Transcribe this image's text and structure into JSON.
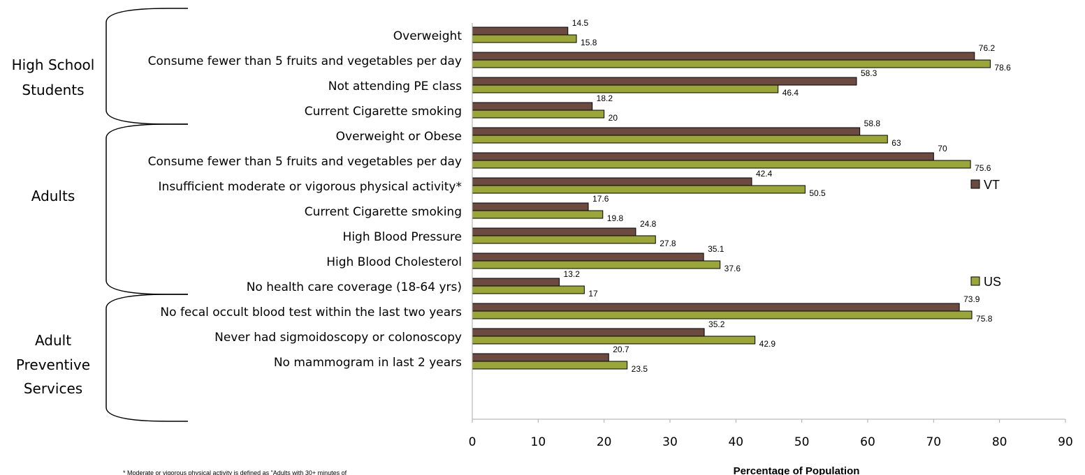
{
  "chart_data": {
    "type": "bar",
    "orientation": "horizontal",
    "xlabel": "Percentage of Population",
    "xlim": [
      0,
      90
    ],
    "xticks": [
      0,
      10,
      20,
      30,
      40,
      50,
      60,
      70,
      80,
      90
    ],
    "grid": false,
    "legend_position": "right",
    "series": [
      {
        "name": "VT",
        "color": "#6b4a42"
      },
      {
        "name": "US",
        "color": "#9aa63a"
      }
    ],
    "groups": [
      {
        "name": "High School Students",
        "lines": [
          "High School",
          "Students"
        ],
        "items": [
          {
            "label": "Overweight",
            "VT": 14.5,
            "US": 15.8
          },
          {
            "label": "Consume fewer than 5 fruits and vegetables per day",
            "VT": 76.2,
            "US": 78.6
          },
          {
            "label": "Not attending PE class",
            "VT": 58.3,
            "US": 46.4
          },
          {
            "label": "Current Cigarette smoking",
            "VT": 18.2,
            "US": 20
          }
        ]
      },
      {
        "name": "Adults",
        "lines": [
          "Adults"
        ],
        "items": [
          {
            "label": "Overweight or Obese",
            "VT": 58.8,
            "US": 63
          },
          {
            "label": "Consume fewer than 5 fruits and vegetables per day",
            "VT": 70,
            "US": 75.6
          },
          {
            "label": "Insufficient moderate or vigorous physical activity*",
            "VT": 42.4,
            "US": 50.5
          },
          {
            "label": "Current Cigarette smoking",
            "VT": 17.6,
            "US": 19.8
          },
          {
            "label": "High Blood Pressure",
            "VT": 24.8,
            "US": 27.8
          },
          {
            "label": "High Blood Cholesterol",
            "VT": 35.1,
            "US": 37.6
          }
        ]
      },
      {
        "name": "Adult Preventive Services",
        "lines": [
          "Adult",
          "Preventive",
          "Services"
        ],
        "items": [
          {
            "label": "No health care coverage (18-64 yrs)",
            "VT": 13.2,
            "US": 17
          },
          {
            "label": "No fecal occult blood test within the last two years",
            "VT": 73.9,
            "US": 75.8
          },
          {
            "label": "Never had sigmoidoscopy or colonoscopy",
            "VT": 35.2,
            "US": 42.9
          },
          {
            "label": "No mammogram in last 2 years",
            "VT": 20.7,
            "US": 23.5
          }
        ]
      }
    ],
    "footnote": "* Moderate or vigorous physical activity is defined as \"Adults with 30+ minutes of"
  }
}
